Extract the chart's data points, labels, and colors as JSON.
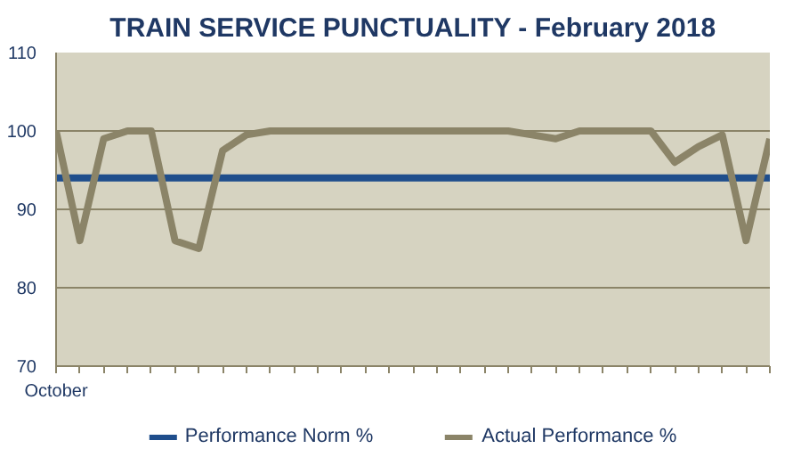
{
  "chart_data": {
    "type": "line",
    "title": "TRAIN SERVICE PUNCTUALITY - February 2018",
    "categories": [
      "October",
      null,
      null,
      null,
      null,
      null,
      null,
      null,
      null,
      null,
      null,
      null,
      null,
      null,
      null,
      null,
      null,
      null,
      null,
      null,
      null,
      null,
      null,
      null,
      null,
      null,
      null,
      null,
      null,
      null,
      null
    ],
    "series": [
      {
        "name": "Performance Norm %",
        "color": "#1f4e8c",
        "values": [
          94,
          94,
          94,
          94,
          94,
          94,
          94,
          94,
          94,
          94,
          94,
          94,
          94,
          94,
          94,
          94,
          94,
          94,
          94,
          94,
          94,
          94,
          94,
          94,
          94,
          94,
          94,
          94,
          94,
          94,
          94
        ]
      },
      {
        "name": "Actual Performance %",
        "color": "#8b8468",
        "values": [
          100,
          86,
          99,
          100,
          100,
          86,
          85,
          97.5,
          99.5,
          100,
          100,
          100,
          100,
          100,
          100,
          100,
          100,
          100,
          100,
          100,
          99.5,
          99,
          100,
          100,
          100,
          100,
          96,
          98,
          99.5,
          86,
          99
        ]
      }
    ],
    "ylim": [
      70,
      110
    ],
    "yticks": [
      70,
      80,
      90,
      100,
      110
    ],
    "grid": "y",
    "legend": "bottom",
    "marker": "none",
    "line_style": "solid"
  }
}
